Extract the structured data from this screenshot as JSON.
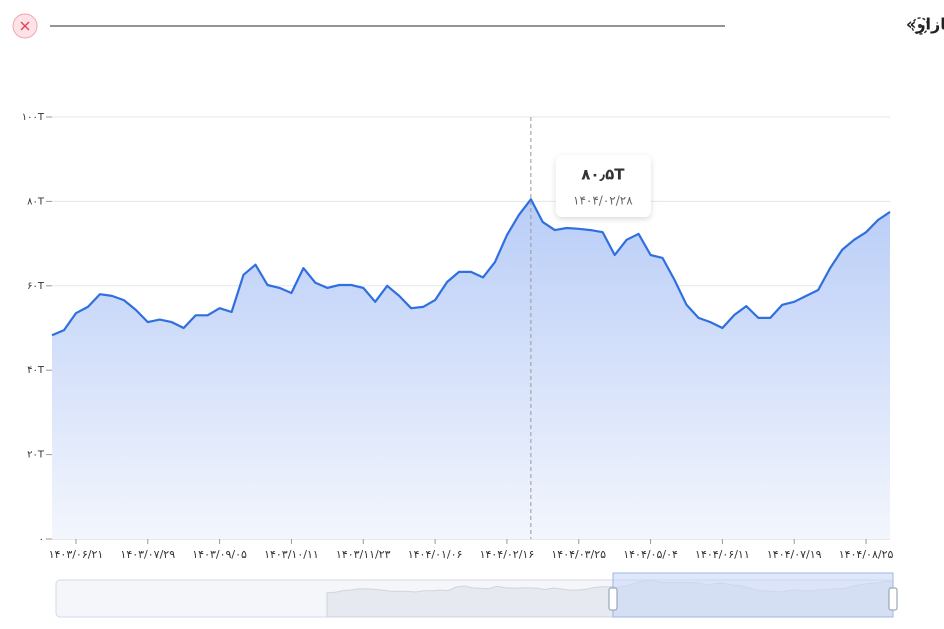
{
  "chart_data": {
    "type": "area",
    "title": "تاریخچه «ارزش بازار»",
    "color": "#2f6fe0",
    "ylim": [
      0,
      100
    ],
    "yticks": [
      {
        "value": 0,
        "label": "۰"
      },
      {
        "value": 20,
        "label": "۲۰T"
      },
      {
        "value": 40,
        "label": "۴۰T"
      },
      {
        "value": 60,
        "label": "۶۰T"
      },
      {
        "value": 80,
        "label": "۸۰T"
      },
      {
        "value": 100,
        "label": "۱۰۰T"
      }
    ],
    "grid": true,
    "categories": [
      null,
      null,
      "۱۴۰۳/۰۶/۲۱",
      null,
      null,
      null,
      null,
      null,
      "۱۴۰۳/۰۷/۲۹",
      null,
      null,
      null,
      null,
      null,
      "۱۴۰۳/۰۹/۰۵",
      null,
      null,
      null,
      null,
      null,
      "۱۴۰۳/۱۰/۱۱",
      null,
      null,
      null,
      null,
      null,
      "۱۴۰۳/۱۱/۲۳",
      null,
      null,
      null,
      null,
      null,
      "۱۴۰۴/۰۱/۰۶",
      null,
      null,
      null,
      null,
      null,
      "۱۴۰۴/۰۲/۱۶",
      null,
      null,
      null,
      null,
      null,
      "۱۴۰۴/۰۳/۲۵",
      null,
      null,
      null,
      null,
      null,
      "۱۴۰۴/۰۵/۰۴",
      null,
      null,
      null,
      null,
      null,
      "۱۴۰۴/۰۶/۱۱",
      null,
      null,
      null,
      null,
      null,
      "۱۴۰۴/۰۷/۱۹",
      null,
      null,
      null,
      null,
      null,
      "۱۴۰۴/۰۸/۲۵",
      null,
      null
    ],
    "values": [
      48.3,
      49.5,
      53.5,
      55,
      58,
      57.6,
      56.6,
      54.3,
      51.4,
      52,
      51.4,
      50,
      53,
      53,
      54.7,
      53.8,
      62.6,
      65,
      60.2,
      59.5,
      58.3,
      64.2,
      60.7,
      59.5,
      60.2,
      60.2,
      59.5,
      56.2,
      60,
      57.6,
      54.7,
      55,
      56.6,
      60.9,
      63.3,
      63.3,
      62,
      65.6,
      72,
      76.8,
      80.5,
      75.1,
      73.2,
      73.7,
      73.5,
      73.2,
      72.7,
      67.3,
      70.9,
      72.3,
      67.3,
      66.6,
      61.4,
      55.5,
      52.4,
      51.4,
      50,
      53.1,
      55.2,
      52.4,
      52.4,
      55.5,
      56.2,
      57.6,
      59,
      64.2,
      68.5,
      70.9,
      72.7,
      75.6,
      77.5
    ],
    "tooltip": {
      "value": 80.5,
      "label": "۸۰٫۵T",
      "date": "۱۴۰۴/۰۲/۲۸"
    }
  }
}
